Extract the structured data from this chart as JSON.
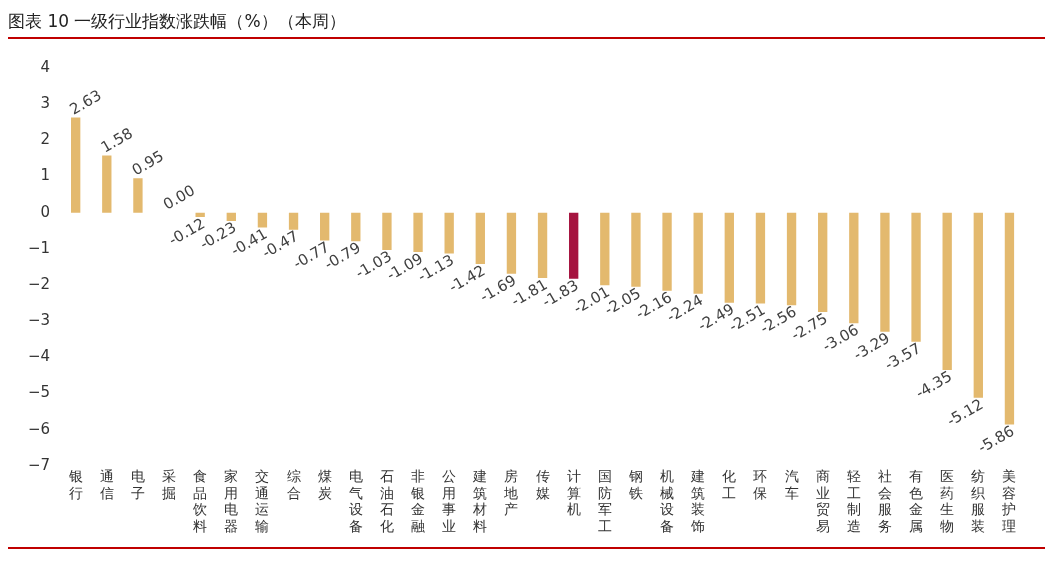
{
  "chart_data": {
    "type": "bar",
    "title": "图表 10 一级行业指数涨跌幅（%）（本周）",
    "categories": [
      "银行",
      "通信",
      "电子",
      "采掘",
      "食品饮料",
      "家用电器",
      "交通运输",
      "综合",
      "煤炭",
      "电气设备",
      "石油石化",
      "非银金融",
      "公用事业",
      "建筑材料",
      "房地产",
      "传媒",
      "计算机",
      "国防军工",
      "钢铁",
      "机械设备",
      "建筑装饰",
      "化工",
      "环保",
      "汽车",
      "商业贸易",
      "轻工制造",
      "社会服务",
      "有色金属",
      "医药生物",
      "纺织服装",
      "美容护理"
    ],
    "values": [
      2.63,
      1.58,
      0.95,
      0.0,
      -0.12,
      -0.23,
      -0.41,
      -0.47,
      -0.77,
      -0.79,
      -1.03,
      -1.09,
      -1.13,
      -1.42,
      -1.69,
      -1.81,
      -1.83,
      -2.01,
      -2.05,
      -2.16,
      -2.24,
      -2.49,
      -2.51,
      -2.56,
      -2.75,
      -3.06,
      -3.29,
      -3.57,
      -4.35,
      -5.12,
      -5.86
    ],
    "colors": [
      "#e3b96e",
      "#e3b96e",
      "#e3b96e",
      "#e3b96e",
      "#e3b96e",
      "#e3b96e",
      "#e3b96e",
      "#e3b96e",
      "#e3b96e",
      "#e3b96e",
      "#e3b96e",
      "#e3b96e",
      "#e3b96e",
      "#e3b96e",
      "#e3b96e",
      "#e3b96e",
      "#a5143f",
      "#e3b96e",
      "#e3b96e",
      "#e3b96e",
      "#e3b96e",
      "#e3b96e",
      "#e3b96e",
      "#e3b96e",
      "#e3b96e",
      "#e3b96e",
      "#e3b96e",
      "#e3b96e",
      "#e3b96e",
      "#e3b96e",
      "#e3b96e"
    ],
    "ylim": [
      -7,
      4
    ],
    "yticks": [
      -7,
      -6,
      -5,
      -4,
      -3,
      -2,
      -1,
      0,
      1,
      2,
      3,
      4
    ],
    "value_labels": [
      "2.63",
      "1.58",
      "0.95",
      "0.00",
      "-0.12",
      "-0.23",
      "-0.41",
      "-0.47",
      "-0.77",
      "-0.79",
      "-1.03",
      "-1.09",
      "-1.13",
      "-1.42",
      "-1.69",
      "-1.81",
      "-1.83",
      "-2.01",
      "-2.05",
      "-2.16",
      "-2.24",
      "-2.49",
      "-2.51",
      "-2.56",
      "-2.75",
      "-3.06",
      "-3.29",
      "-3.57",
      "-4.35",
      "-5.12",
      "-5.86"
    ],
    "grid": false,
    "legend": false
  }
}
